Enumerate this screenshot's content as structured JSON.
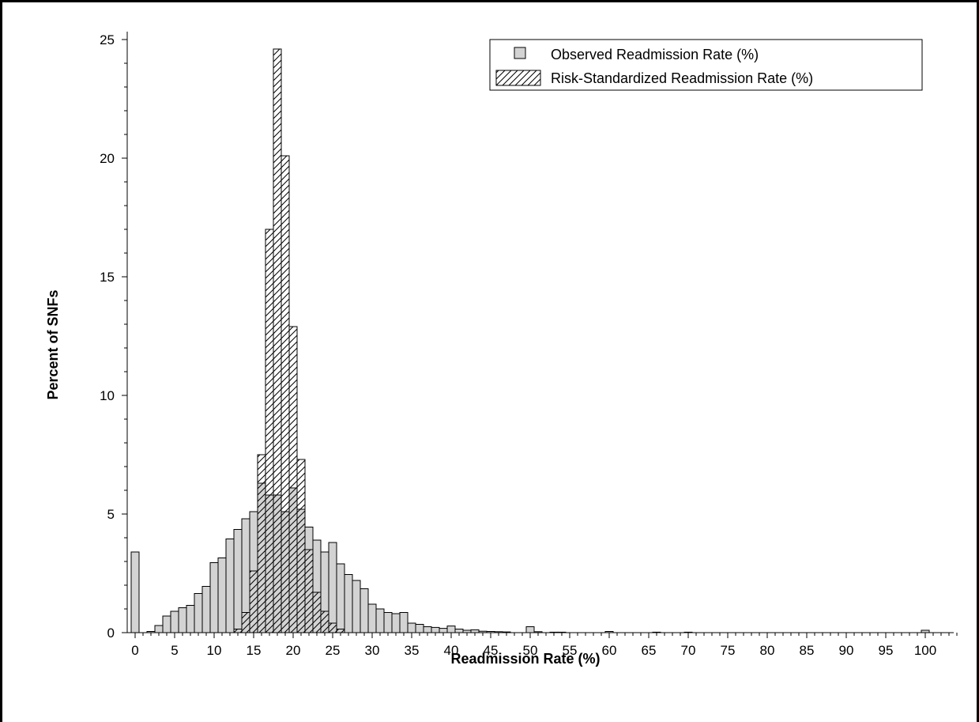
{
  "chart_data": {
    "type": "bar",
    "subtype": "overlaid-histogram",
    "xlabel": "Readmission Rate (%)",
    "ylabel": "Percent of SNFs",
    "xlim": [
      0,
      104
    ],
    "ylim": [
      0,
      25
    ],
    "bin_width": 1,
    "x_ticks": [
      0,
      5,
      10,
      15,
      20,
      25,
      30,
      35,
      40,
      45,
      50,
      55,
      60,
      65,
      70,
      75,
      80,
      85,
      90,
      95,
      100
    ],
    "y_ticks": [
      0,
      5,
      10,
      15,
      20,
      25
    ],
    "grid": false,
    "legend_position": "top-right",
    "series": [
      {
        "name": "Observed Readmission Rate (%)",
        "style": "solid-light-gray",
        "color": "#d3d3d3",
        "bins": [
          [
            0,
            3.4
          ],
          [
            2,
            0.05
          ],
          [
            3,
            0.3
          ],
          [
            4,
            0.7
          ],
          [
            5,
            0.9
          ],
          [
            6,
            1.05
          ],
          [
            7,
            1.15
          ],
          [
            8,
            1.65
          ],
          [
            9,
            1.95
          ],
          [
            10,
            2.95
          ],
          [
            11,
            3.15
          ],
          [
            12,
            3.95
          ],
          [
            13,
            4.35
          ],
          [
            14,
            4.8
          ],
          [
            15,
            5.1
          ],
          [
            16,
            6.3
          ],
          [
            17,
            5.8
          ],
          [
            18,
            5.8
          ],
          [
            19,
            5.1
          ],
          [
            20,
            6.1
          ],
          [
            21,
            5.2
          ],
          [
            22,
            4.45
          ],
          [
            23,
            3.9
          ],
          [
            24,
            3.4
          ],
          [
            25,
            3.8
          ],
          [
            26,
            2.9
          ],
          [
            27,
            2.45
          ],
          [
            28,
            2.2
          ],
          [
            29,
            1.85
          ],
          [
            30,
            1.2
          ],
          [
            31,
            1.0
          ],
          [
            32,
            0.85
          ],
          [
            33,
            0.8
          ],
          [
            34,
            0.85
          ],
          [
            35,
            0.4
          ],
          [
            36,
            0.35
          ],
          [
            37,
            0.25
          ],
          [
            38,
            0.22
          ],
          [
            39,
            0.18
          ],
          [
            40,
            0.28
          ],
          [
            41,
            0.15
          ],
          [
            42,
            0.1
          ],
          [
            43,
            0.12
          ],
          [
            44,
            0.06
          ],
          [
            45,
            0.05
          ],
          [
            46,
            0.04
          ],
          [
            47,
            0.03
          ],
          [
            50,
            0.25
          ],
          [
            51,
            0.04
          ],
          [
            53,
            0.02
          ],
          [
            54,
            0.02
          ],
          [
            60,
            0.05
          ],
          [
            66,
            0.02
          ],
          [
            70,
            0.02
          ],
          [
            100,
            0.1
          ]
        ]
      },
      {
        "name": "Risk-Standardized Readmission Rate (%)",
        "style": "hatched",
        "color": "#000000",
        "bins": [
          [
            13,
            0.15
          ],
          [
            14,
            0.85
          ],
          [
            15,
            2.6
          ],
          [
            16,
            7.5
          ],
          [
            17,
            17.0
          ],
          [
            18,
            24.6
          ],
          [
            19,
            20.1
          ],
          [
            20,
            12.9
          ],
          [
            21,
            7.3
          ],
          [
            22,
            3.5
          ],
          [
            23,
            1.7
          ],
          [
            24,
            0.9
          ],
          [
            25,
            0.4
          ],
          [
            26,
            0.15
          ]
        ]
      }
    ]
  }
}
